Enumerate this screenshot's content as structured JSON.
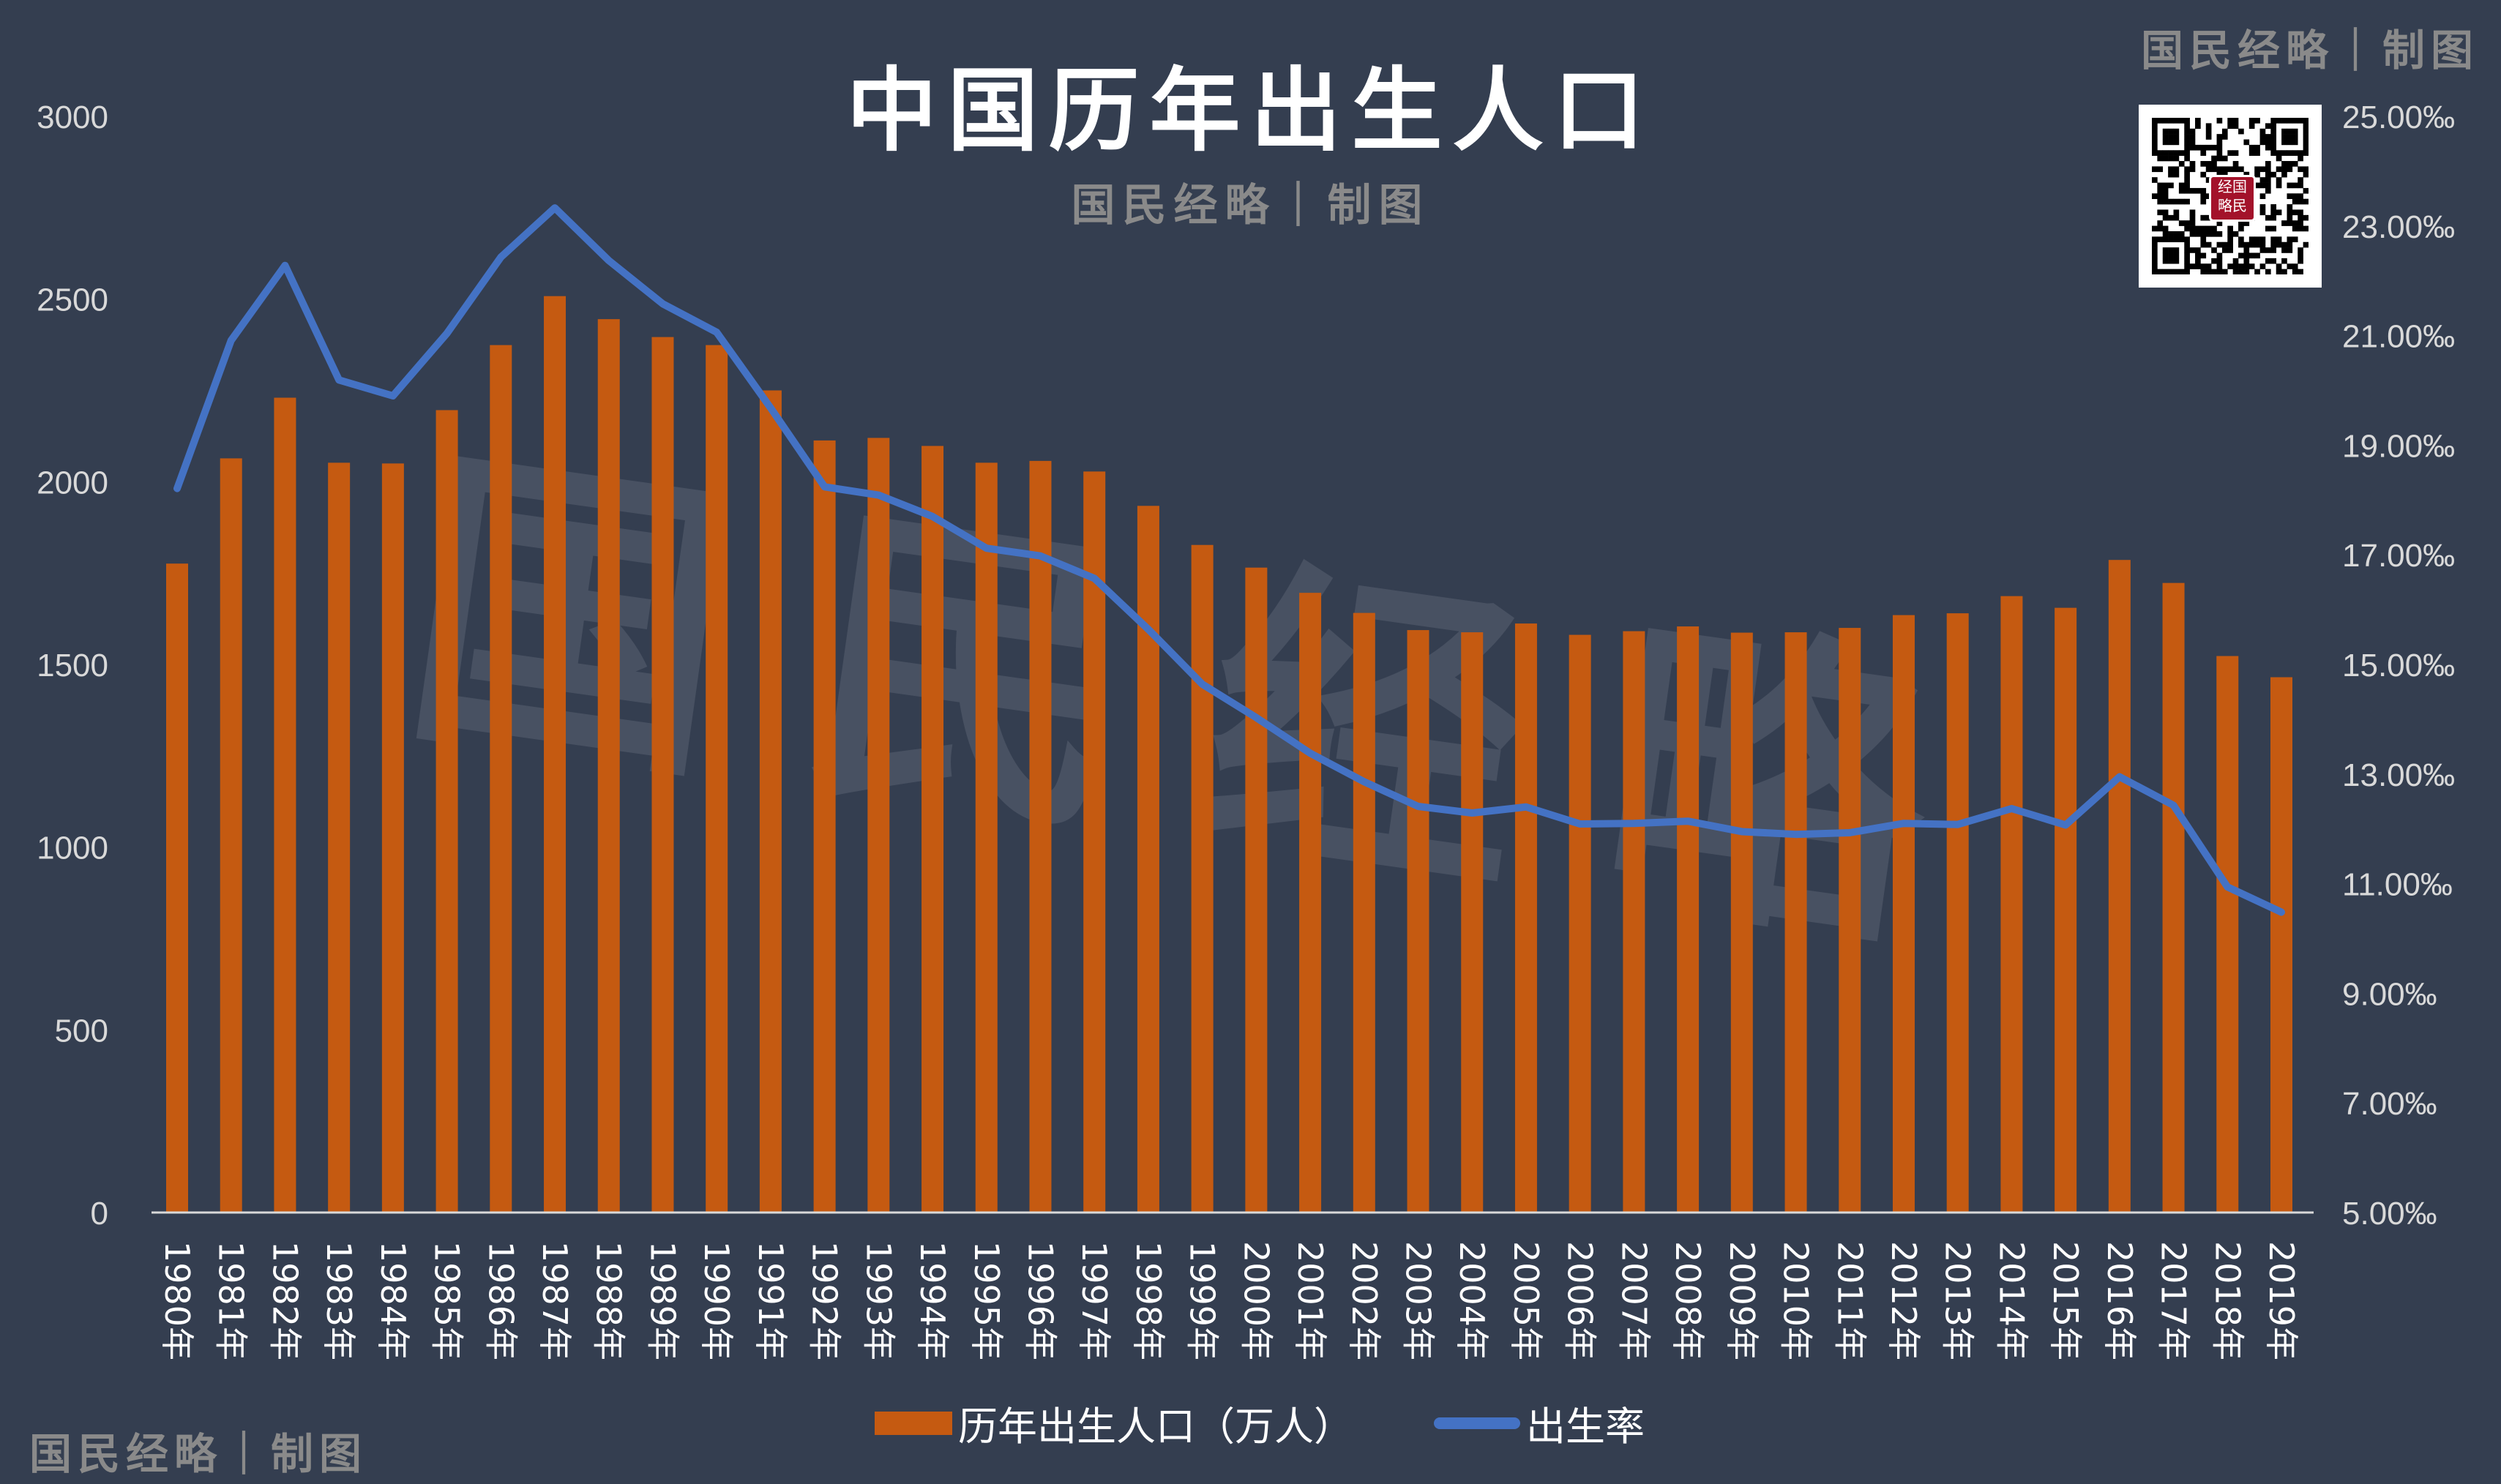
{
  "header": {
    "title": "中国历年出生人口",
    "subtitle": "国民经略｜制图",
    "corner_credit": "国民经略｜制图",
    "bottom_credit": "国民经略｜制图",
    "watermark": "国民经略",
    "qr_seal": "国民经略"
  },
  "colors": {
    "background": "#343e50",
    "bars": "#c55a11",
    "line": "#4472c4"
  },
  "chart_data": {
    "type": "bar+line",
    "title": "中国历年出生人口",
    "categories": [
      "1980年",
      "1981年",
      "1982年",
      "1983年",
      "1984年",
      "1985年",
      "1986年",
      "1987年",
      "1988年",
      "1989年",
      "1990年",
      "1991年",
      "1992年",
      "1993年",
      "1994年",
      "1995年",
      "1996年",
      "1997年",
      "1998年",
      "1999年",
      "2000年",
      "2001年",
      "2002年",
      "2003年",
      "2004年",
      "2005年",
      "2006年",
      "2007年",
      "2008年",
      "2009年",
      "2010年",
      "2011年",
      "2012年",
      "2013年",
      "2014年",
      "2015年",
      "2016年",
      "2017年",
      "2018年",
      "2019年"
    ],
    "series": [
      {
        "name": "历年出生人口（万人）",
        "type": "bar",
        "axis": "left",
        "values": [
          1776,
          2064,
          2230,
          2052,
          2050,
          2196,
          2374,
          2508,
          2445,
          2396,
          2374,
          2250,
          2113,
          2120,
          2098,
          2052,
          2057,
          2028,
          1934,
          1827,
          1765,
          1696,
          1641,
          1594,
          1588,
          1612,
          1581,
          1591,
          1604,
          1587,
          1588,
          1600,
          1635,
          1640,
          1687,
          1655,
          1786,
          1723,
          1523,
          1465
        ]
      },
      {
        "name": "出生率",
        "type": "line",
        "axis": "right",
        "values": [
          18.21,
          20.91,
          22.28,
          20.19,
          19.9,
          21.04,
          22.43,
          23.33,
          22.37,
          21.58,
          21.06,
          19.68,
          18.24,
          18.09,
          17.7,
          17.12,
          16.98,
          16.57,
          15.64,
          14.64,
          14.03,
          13.38,
          12.86,
          12.41,
          12.29,
          12.4,
          12.09,
          12.1,
          12.14,
          11.95,
          11.9,
          11.93,
          12.1,
          12.08,
          12.37,
          12.07,
          12.95,
          12.43,
          10.94,
          10.48
        ]
      }
    ],
    "y_left": {
      "range": [
        0,
        3000
      ],
      "ticks": [
        "0",
        "500",
        "1000",
        "1500",
        "2000",
        "2500",
        "3000"
      ]
    },
    "y_right": {
      "range": [
        5,
        25
      ],
      "ticks": [
        "5.00‰",
        "7.00‰",
        "9.00‰",
        "11.00‰",
        "13.00‰",
        "15.00‰",
        "17.00‰",
        "19.00‰",
        "21.00‰",
        "23.00‰",
        "25.00‰"
      ]
    },
    "grid": false,
    "legend": "bottom"
  }
}
